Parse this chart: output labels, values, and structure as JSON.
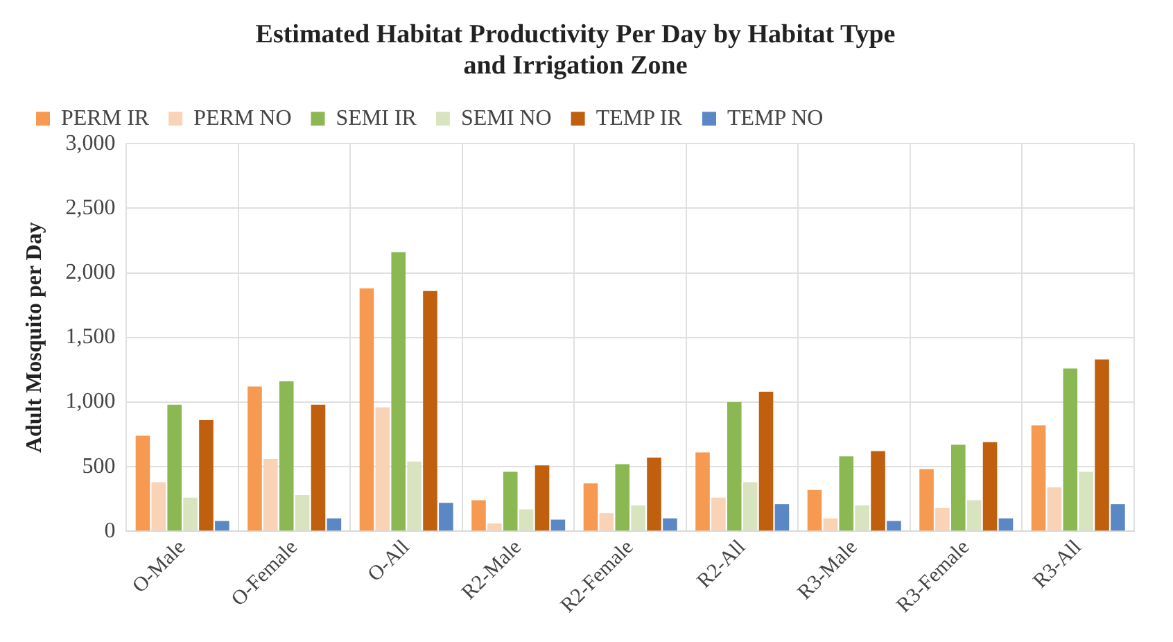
{
  "chart_data": {
    "type": "bar",
    "title": [
      "Estimated Habitat Productivity Per Day by Habitat Type",
      "and Irrigation Zone"
    ],
    "ylabel": "Adult Mosquito per Day",
    "categories": [
      "O-Male",
      "O-Female",
      "O-All",
      "R2-Male",
      "R2-Female",
      "R2-All",
      "R3-Male",
      "R3-Female",
      "R3-All"
    ],
    "series": [
      {
        "name": "PERM IR",
        "color": "#f59a50",
        "values": [
          740,
          1120,
          1880,
          240,
          370,
          610,
          320,
          480,
          820
        ]
      },
      {
        "name": "PERM NO",
        "color": "#f9d3b5",
        "values": [
          380,
          560,
          960,
          60,
          140,
          260,
          100,
          180,
          340
        ]
      },
      {
        "name": "SEMI IR",
        "color": "#8cb854",
        "values": [
          980,
          1160,
          2160,
          460,
          520,
          1000,
          580,
          670,
          1260
        ]
      },
      {
        "name": "SEMI NO",
        "color": "#d8e4bf",
        "values": [
          260,
          280,
          540,
          170,
          200,
          380,
          200,
          240,
          460
        ]
      },
      {
        "name": "TEMP IR",
        "color": "#c0600e",
        "values": [
          860,
          980,
          1860,
          510,
          570,
          1080,
          620,
          690,
          1330
        ]
      },
      {
        "name": "TEMP NO",
        "color": "#5b87c5",
        "values": [
          80,
          100,
          220,
          90,
          100,
          210,
          80,
          100,
          210
        ]
      }
    ],
    "ylim": [
      0,
      3000
    ],
    "yticks": [
      0,
      500,
      {
        "value": 1000,
        "label": "1,000"
      },
      {
        "value": 1500,
        "label": "1,500"
      },
      {
        "value": 2000,
        "label": "2,000"
      },
      {
        "value": 2500,
        "label": "2,500"
      },
      {
        "value": 3000,
        "label": "3,000"
      }
    ],
    "grid": true,
    "legend": "top"
  }
}
